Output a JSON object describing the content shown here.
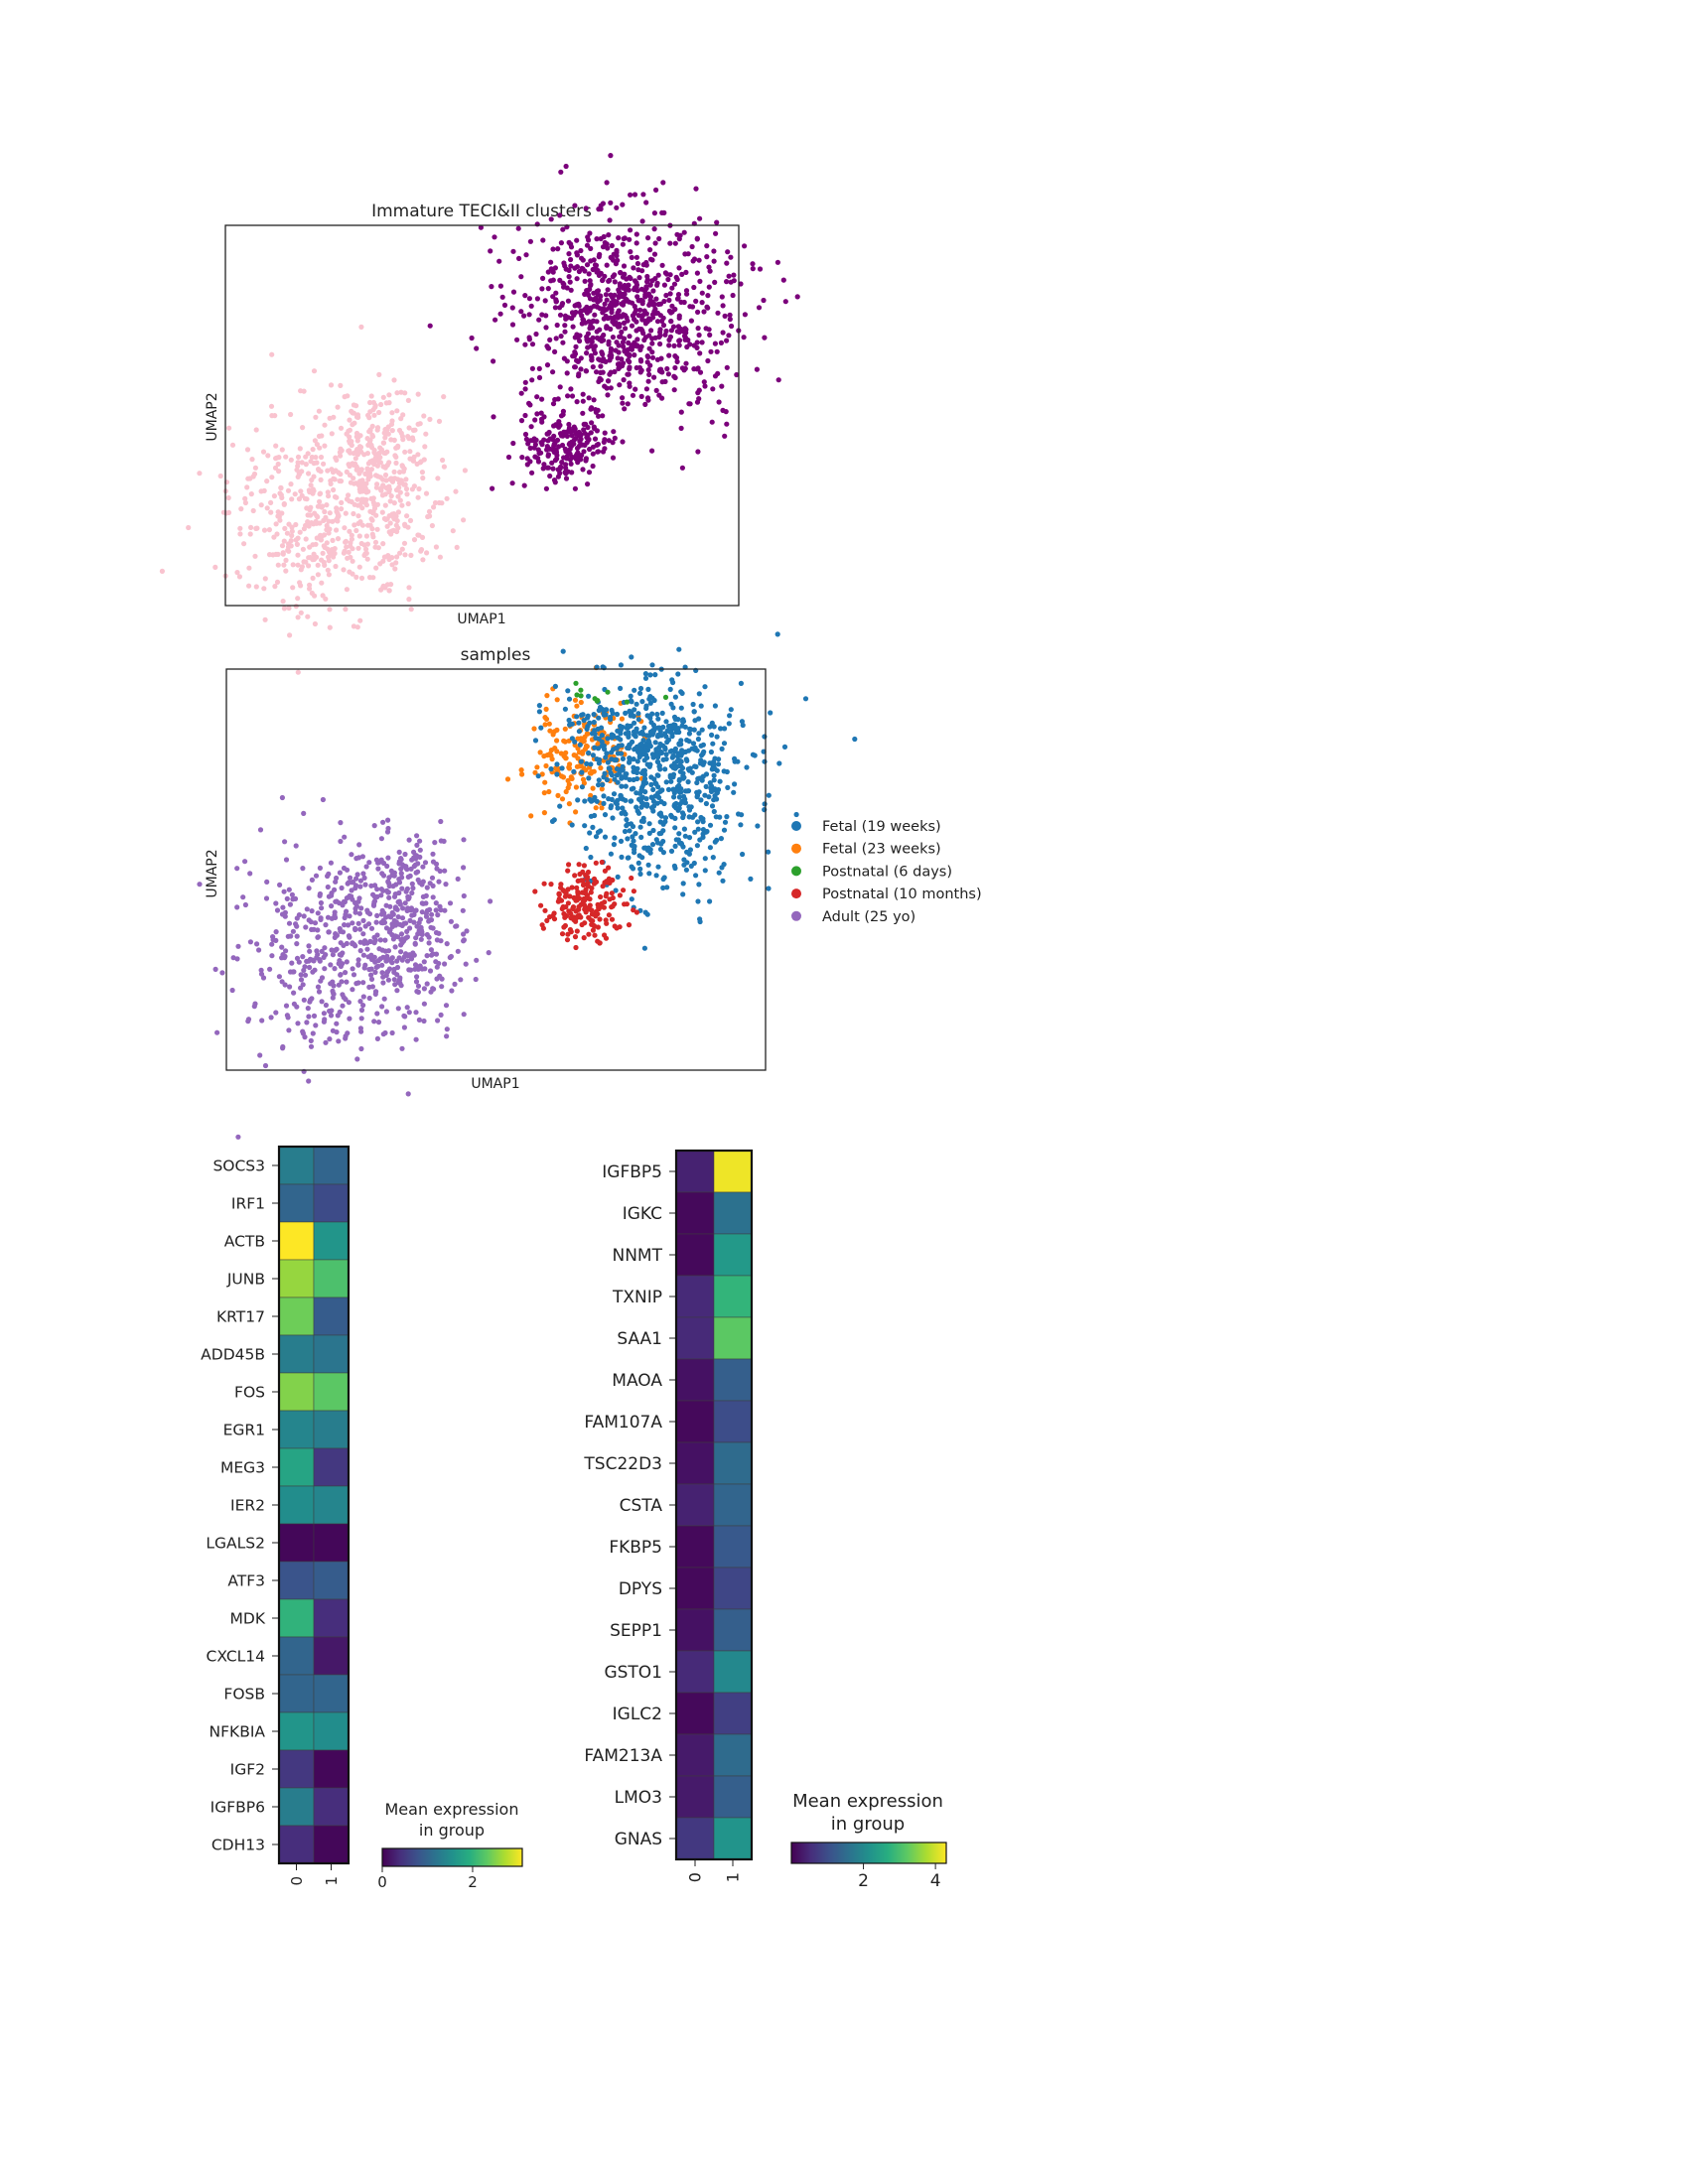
{
  "chart_data": [
    {
      "type": "scatter",
      "title": "Immature TECI&II clusters",
      "xlabel": "UMAP1",
      "ylabel": "UMAP2",
      "colors": {
        "cluster_0": "#f9c3cf",
        "cluster_1": "#7b007b"
      }
    },
    {
      "type": "scatter",
      "title": "samples",
      "xlabel": "UMAP1",
      "ylabel": "UMAP2",
      "legend_position": "right",
      "series": [
        {
          "name": "Fetal (19 weeks)",
          "color": "#1f77b4"
        },
        {
          "name": "Fetal (23 weeks)",
          "color": "#ff7f0e"
        },
        {
          "name": "Postnatal (6 days)",
          "color": "#2ca02c"
        },
        {
          "name": "Postnatal (10 months)",
          "color": "#d62728"
        },
        {
          "name": "Adult (25 yo)",
          "color": "#9467bd"
        }
      ]
    },
    {
      "type": "heatmap",
      "groups": [
        "0",
        "1"
      ],
      "genes": [
        "SOCS3",
        "IRF1",
        "ACTB",
        "JUNB",
        "KRT17",
        "ADD45B",
        "FOS",
        "EGR1",
        "MEG3",
        "IER2",
        "LGALS2",
        "ATF3",
        "MDK",
        "CXCL14",
        "FOSB",
        "NFKBIA",
        "IGF2",
        "IGFBP6",
        "CDH13"
      ],
      "values": [
        [
          1.3,
          1.0
        ],
        [
          1.0,
          0.7
        ],
        [
          3.1,
          1.6
        ],
        [
          2.6,
          2.2
        ],
        [
          2.4,
          0.9
        ],
        [
          1.3,
          1.2
        ],
        [
          2.5,
          2.3
        ],
        [
          1.4,
          1.3
        ],
        [
          1.8,
          0.5
        ],
        [
          1.5,
          1.4
        ],
        [
          0.05,
          0.05
        ],
        [
          0.8,
          0.9
        ],
        [
          2.0,
          0.4
        ],
        [
          1.0,
          0.2
        ],
        [
          1.0,
          1.0
        ],
        [
          1.6,
          1.5
        ],
        [
          0.5,
          0.05
        ],
        [
          1.3,
          0.4
        ],
        [
          0.4,
          0.05
        ]
      ],
      "colorbar_title": "Mean expression\nin group",
      "colorbar_ticks": [
        "0",
        "2"
      ],
      "colorbar_range": [
        0,
        3.1
      ],
      "colormap": "viridis"
    },
    {
      "type": "heatmap",
      "groups": [
        "0",
        "1"
      ],
      "genes": [
        "IGFBP5",
        "IGKC",
        "NNMT",
        "TXNIP",
        "SAA1",
        "MAOA",
        "FAM107A",
        "TSC22D3",
        "CSTA",
        "FKBP5",
        "DPYS",
        "SEPP1",
        "GSTO1",
        "IGLC2",
        "FAM213A",
        "LMO3",
        "GNAS"
      ],
      "values": [
        [
          0.4,
          4.2
        ],
        [
          0.1,
          1.6
        ],
        [
          0.1,
          2.3
        ],
        [
          0.5,
          2.8
        ],
        [
          0.5,
          3.2
        ],
        [
          0.2,
          1.3
        ],
        [
          0.1,
          1.0
        ],
        [
          0.2,
          1.5
        ],
        [
          0.4,
          1.4
        ],
        [
          0.1,
          1.2
        ],
        [
          0.1,
          0.9
        ],
        [
          0.2,
          1.3
        ],
        [
          0.5,
          2.0
        ],
        [
          0.1,
          0.8
        ],
        [
          0.3,
          1.5
        ],
        [
          0.3,
          1.3
        ],
        [
          0.7,
          2.2
        ]
      ],
      "colorbar_title": "Mean expression\nin group",
      "colorbar_ticks": [
        "2",
        "4"
      ],
      "colorbar_range": [
        0,
        4.3
      ],
      "colormap": "viridis"
    }
  ]
}
